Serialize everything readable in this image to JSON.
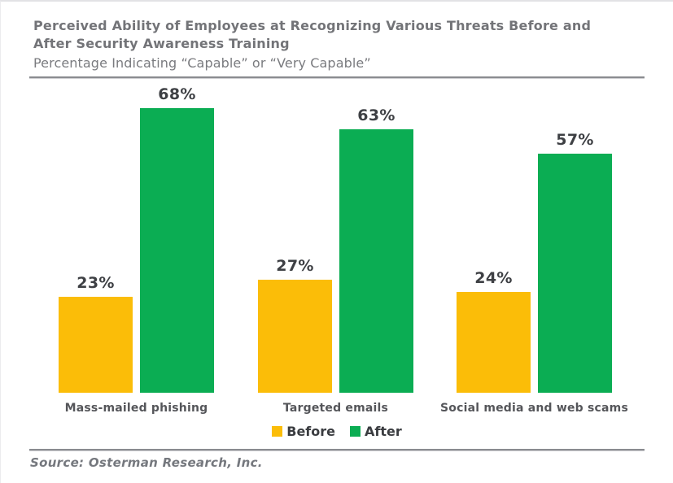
{
  "header": {
    "title_line1": "Perceived Ability of Employees at Recognizing Various Threats Before and",
    "title_line2": "After Security Awareness Training",
    "subtitle": "Percentage Indicating “Capable” or “Very Capable”"
  },
  "chart_data": {
    "type": "bar",
    "title": "Perceived Ability of Employees at Recognizing Various Threats Before and After Security Awareness Training",
    "subtitle": "Percentage Indicating “Capable” or “Very Capable”",
    "categories": [
      "Mass-mailed phishing",
      "Targeted emails",
      "Social media and web scams"
    ],
    "series": [
      {
        "name": "Before",
        "color": "#FBBD08",
        "values": [
          23,
          27,
          24
        ]
      },
      {
        "name": "After",
        "color": "#0BAD53",
        "values": [
          68,
          63,
          57
        ]
      }
    ],
    "value_suffix": "%",
    "data_labels": [
      "23%",
      "68%",
      "27%",
      "63%",
      "24%",
      "57%"
    ],
    "ylim": [
      0,
      75
    ],
    "grid": false,
    "axes_shown": false,
    "legend_position": "bottom"
  },
  "footer": {
    "source": "Source: Osterman Research, Inc."
  }
}
